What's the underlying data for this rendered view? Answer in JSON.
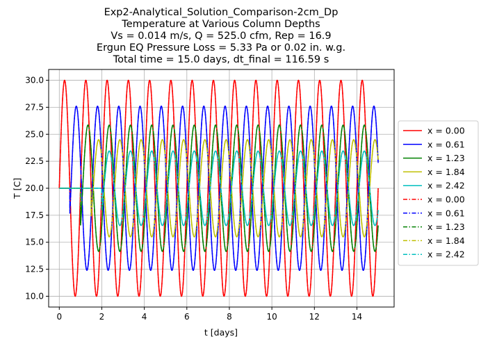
{
  "chart_data": {
    "type": "line",
    "title_lines": [
      "Exp2-Analytical_Solution_Comparison-2cm_Dp",
      "Temperature at Various Column Depths",
      "Vs = 0.014 m/s, Q = 525.0 cfm, Rep = 16.9",
      "Ergun EQ Pressure Loss = 5.33 Pa or 0.02 in. w.g.",
      "Total time = 15.0 days, dt_final = 116.59 s"
    ],
    "xlabel": "t [days]",
    "ylabel": "T [C]",
    "xlim": [
      -0.5,
      15.75
    ],
    "ylim": [
      9.0,
      31.0
    ],
    "xticks": [
      0,
      2,
      4,
      6,
      8,
      10,
      12,
      14
    ],
    "xtick_labels": [
      "0",
      "2",
      "4",
      "6",
      "8",
      "10",
      "12",
      "14"
    ],
    "yticks": [
      10.0,
      12.5,
      15.0,
      17.5,
      20.0,
      22.5,
      25.0,
      27.5,
      30.0
    ],
    "ytick_labels": [
      "10.0",
      "12.5",
      "15.0",
      "17.5",
      "20.0",
      "22.5",
      "25.0",
      "27.5",
      "30.0"
    ],
    "grid": true,
    "legend_position": "outside-right",
    "x_range": [
      0,
      15
    ],
    "period_days": 1,
    "series": [
      {
        "name": "x = 0.00",
        "color": "#ff0000",
        "style": "solid",
        "mean": 20,
        "amplitude": 10.0,
        "delay_days": 0.0,
        "onset_days": 0.0
      },
      {
        "name": "x = 0.61",
        "color": "#0000ff",
        "style": "solid",
        "mean": 20,
        "amplitude": 7.6,
        "delay_days": 0.55,
        "onset_days": 0.5
      },
      {
        "name": "x = 1.23",
        "color": "#008000",
        "style": "solid",
        "mean": 20,
        "amplitude": 5.85,
        "delay_days": 1.1,
        "onset_days": 1.0
      },
      {
        "name": "x = 1.84",
        "color": "#bfbf00",
        "style": "solid",
        "mean": 20,
        "amplitude": 4.5,
        "delay_days": 1.6,
        "onset_days": 1.5
      },
      {
        "name": "x = 2.42",
        "color": "#00bfbf",
        "style": "solid",
        "mean": 20,
        "amplitude": 3.45,
        "delay_days": 2.1,
        "onset_days": 2.0
      },
      {
        "name": "x = 0.00",
        "color": "#ff0000",
        "style": "dashdot",
        "mean": 20,
        "amplitude": 10.0,
        "delay_days": 0.0,
        "onset_days": 0.0
      },
      {
        "name": "x = 0.61",
        "color": "#0000ff",
        "style": "dashdot",
        "mean": 20,
        "amplitude": 7.6,
        "delay_days": 0.55,
        "onset_days": 0.5
      },
      {
        "name": "x = 1.23",
        "color": "#008000",
        "style": "dashdot",
        "mean": 20,
        "amplitude": 5.85,
        "delay_days": 1.1,
        "onset_days": 1.0
      },
      {
        "name": "x = 1.84",
        "color": "#bfbf00",
        "style": "dashdot",
        "mean": 20,
        "amplitude": 4.5,
        "delay_days": 1.6,
        "onset_days": 1.5
      },
      {
        "name": "x = 2.42",
        "color": "#00bfbf",
        "style": "dashdot",
        "mean": 20,
        "amplitude": 3.45,
        "delay_days": 2.1,
        "onset_days": 2.0
      }
    ]
  }
}
